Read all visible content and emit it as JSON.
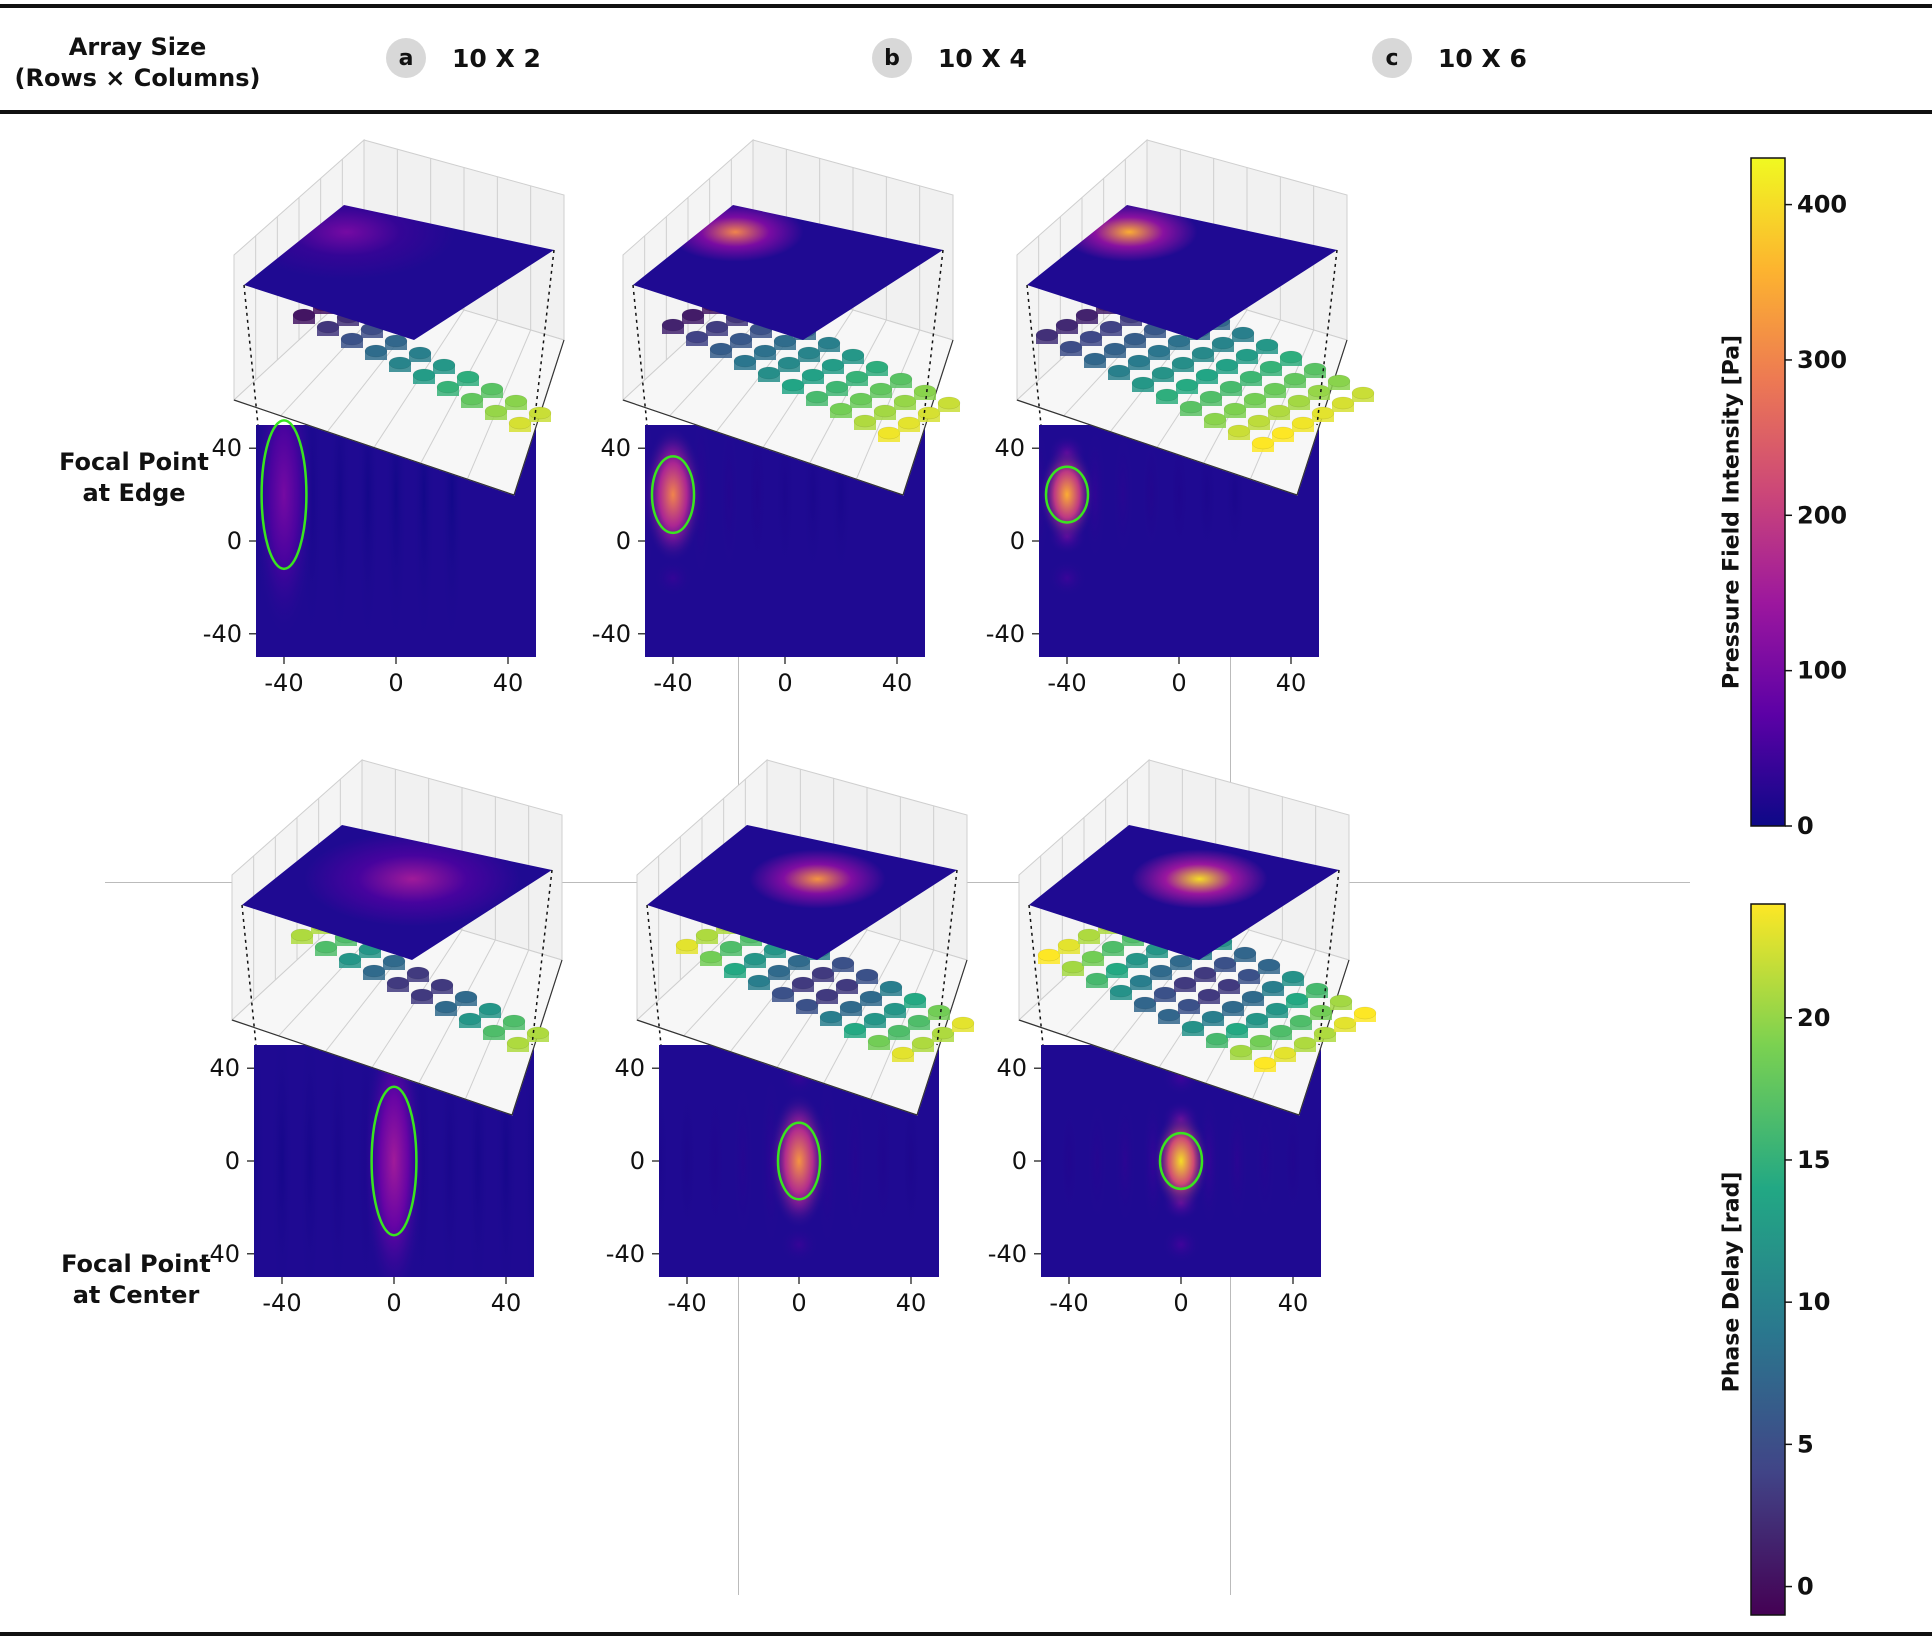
{
  "header": {
    "array_size_label": "Array Size",
    "array_size_sub": "(Rows × Columns)",
    "panels": [
      {
        "badge": "a",
        "label": "10 X 2",
        "rows": 10,
        "cols": 2
      },
      {
        "badge": "b",
        "label": "10 X 4",
        "rows": 10,
        "cols": 4
      },
      {
        "badge": "c",
        "label": "10 X 6",
        "rows": 10,
        "cols": 6
      }
    ]
  },
  "rows": [
    {
      "label_line1": "Focal Point",
      "label_line2": "at Edge",
      "focus": "edge"
    },
    {
      "label_line1": "Focal Point",
      "label_line2": "at Center",
      "focus": "center"
    }
  ],
  "chart_data": [
    {
      "type": "heatmap",
      "panel": "a",
      "focus": "edge",
      "focal_point": [
        -40,
        20
      ],
      "peak": 100,
      "xticks": [
        -40,
        0,
        40
      ],
      "yticks": [
        40,
        0,
        -40
      ],
      "xlim": [
        -50,
        50
      ],
      "ylim": [
        -50,
        50
      ]
    },
    {
      "type": "heatmap",
      "panel": "b",
      "focus": "edge",
      "focal_point": [
        -40,
        20
      ],
      "peak": 300,
      "xticks": [
        -40,
        0,
        40
      ],
      "yticks": [
        40,
        0,
        -40
      ],
      "xlim": [
        -50,
        50
      ],
      "ylim": [
        -50,
        50
      ]
    },
    {
      "type": "heatmap",
      "panel": "c",
      "focus": "edge",
      "focal_point": [
        -40,
        20
      ],
      "peak": 350,
      "xticks": [
        -40,
        0,
        40
      ],
      "yticks": [
        40,
        0,
        -40
      ],
      "xlim": [
        -50,
        50
      ],
      "ylim": [
        -50,
        50
      ]
    },
    {
      "type": "heatmap",
      "panel": "a",
      "focus": "center",
      "focal_point": [
        0,
        0
      ],
      "peak": 150,
      "xticks": [
        -40,
        0,
        40
      ],
      "yticks": [
        40,
        0,
        -40
      ],
      "xlim": [
        -50,
        50
      ],
      "ylim": [
        -50,
        50
      ]
    },
    {
      "type": "heatmap",
      "panel": "b",
      "focus": "center",
      "focal_point": [
        0,
        0
      ],
      "peak": 320,
      "xticks": [
        -40,
        0,
        40
      ],
      "yticks": [
        40,
        0,
        -40
      ],
      "xlim": [
        -50,
        50
      ],
      "ylim": [
        -50,
        50
      ]
    },
    {
      "type": "heatmap",
      "panel": "c",
      "focus": "center",
      "focal_point": [
        0,
        0
      ],
      "peak": 400,
      "xticks": [
        -40,
        0,
        40
      ],
      "yticks": [
        40,
        0,
        -40
      ],
      "xlim": [
        -50,
        50
      ],
      "ylim": [
        -50,
        50
      ]
    }
  ],
  "colorbars": [
    {
      "title": "Pressure Field Intensity [Pa]",
      "colormap": "plasma",
      "range": [
        0,
        430
      ],
      "ticks": [
        "400",
        "300",
        "200",
        "100",
        "0"
      ],
      "tick_values": [
        400,
        300,
        200,
        100,
        0
      ],
      "stops": [
        "#0d0887",
        "#5c01a6",
        "#9c179e",
        "#cc4778",
        "#ed7953",
        "#fdb42f",
        "#f0f921"
      ]
    },
    {
      "title": "Phase Delay [rad]",
      "colormap": "viridis",
      "range": [
        -1,
        24
      ],
      "ticks": [
        "20",
        "15",
        "10",
        "5",
        "0"
      ],
      "tick_values": [
        20,
        15,
        10,
        5,
        0
      ],
      "stops": [
        "#440154",
        "#414487",
        "#2a788e",
        "#22a884",
        "#7ad151",
        "#fde725"
      ]
    }
  ],
  "colors": {
    "focus_ellipse": "#39e51f",
    "field_bg": "#1f0a92"
  }
}
